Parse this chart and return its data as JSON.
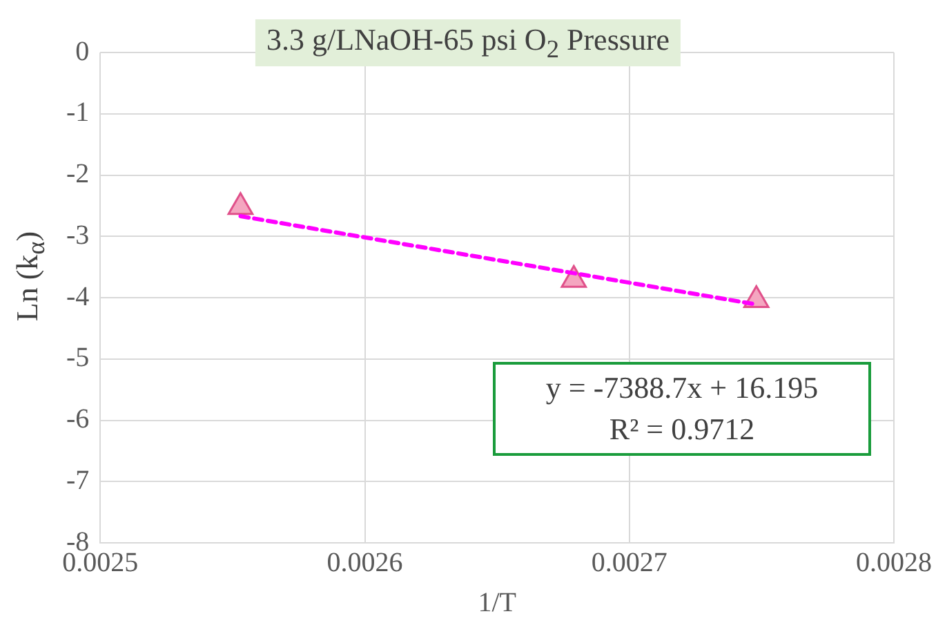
{
  "chart_data": {
    "type": "scatter",
    "title": "3.3 g/LNaOH-65 psi O$_{2}$ Pressure",
    "xlabel": "1/T",
    "ylabel": "Ln (k$_{α}$)",
    "xlim": [
      0.0025,
      0.0028
    ],
    "xticks": [
      0.0025,
      0.0026,
      0.0027,
      0.0028
    ],
    "ylim": [
      -8,
      0
    ],
    "yticks": [
      -8,
      -7,
      -6,
      -5,
      -4,
      -3,
      -2,
      -1,
      0
    ],
    "grid": true,
    "legend": false,
    "series": [
      {
        "type": "scatter",
        "color": "#f4a6c0",
        "marker": "triangle",
        "x": [
          0.002553,
          0.002679,
          0.002748
        ],
        "values": [
          -2.52,
          -3.71,
          -4.04
        ]
      },
      {
        "type": "line",
        "color": "#ff00ff",
        "line_style": "dashed",
        "marker": "none",
        "x": [
          0.002553,
          0.002748
        ],
        "values": [
          -2.67,
          -4.11
        ]
      }
    ],
    "annotations": [
      "y = -7388.7x + 16.195",
      "R² = 0.9712"
    ]
  }
}
